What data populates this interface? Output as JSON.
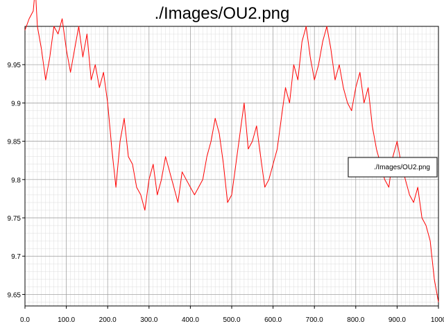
{
  "chart_data": {
    "type": "line",
    "title": "./Images/OU2.png",
    "xlabel": "",
    "ylabel": "",
    "xlim": [
      0,
      1000
    ],
    "ylim": [
      9.635,
      10.0
    ],
    "x_ticks": [
      0,
      100,
      200,
      300,
      400,
      500,
      600,
      700,
      800,
      900,
      1000
    ],
    "x_tick_labels": [
      "0.0",
      "100.0",
      "200.0",
      "300.0",
      "400.0",
      "500.0",
      "600.0",
      "700.0",
      "800.0",
      "900.0",
      "1000"
    ],
    "y_ticks": [
      9.65,
      9.7,
      9.75,
      9.8,
      9.85,
      9.9,
      9.95
    ],
    "y_tick_labels": [
      "9.65",
      "9.7",
      "9.75",
      "9.8",
      "9.85",
      "9.9",
      "9.95"
    ],
    "grid": true,
    "legend": {
      "position": "right",
      "entries": [
        "./Images/OU2.png"
      ]
    },
    "series": [
      {
        "name": "./Images/OU2.png",
        "color": "#ff0000",
        "x": [
          0,
          10,
          20,
          25,
          30,
          40,
          50,
          60,
          70,
          80,
          90,
          100,
          110,
          120,
          130,
          140,
          150,
          160,
          170,
          180,
          190,
          200,
          210,
          220,
          230,
          240,
          250,
          260,
          270,
          280,
          290,
          300,
          310,
          320,
          330,
          340,
          350,
          360,
          370,
          380,
          390,
          400,
          410,
          420,
          430,
          440,
          450,
          460,
          470,
          480,
          490,
          500,
          510,
          520,
          530,
          540,
          550,
          560,
          570,
          580,
          590,
          600,
          610,
          620,
          630,
          640,
          650,
          660,
          670,
          680,
          690,
          700,
          710,
          720,
          730,
          740,
          750,
          760,
          770,
          780,
          790,
          800,
          810,
          820,
          830,
          840,
          850,
          860,
          870,
          880,
          890,
          900,
          910,
          920,
          930,
          940,
          950,
          960,
          970,
          980,
          990,
          1000
        ],
        "y": [
          9.995,
          10.01,
          10.02,
          10.05,
          10.0,
          9.97,
          9.93,
          9.96,
          10.0,
          9.99,
          10.01,
          9.97,
          9.94,
          9.97,
          10.0,
          9.96,
          9.99,
          9.93,
          9.95,
          9.92,
          9.94,
          9.9,
          9.84,
          9.79,
          9.85,
          9.88,
          9.83,
          9.82,
          9.79,
          9.78,
          9.76,
          9.8,
          9.82,
          9.78,
          9.8,
          9.83,
          9.81,
          9.79,
          9.77,
          9.81,
          9.8,
          9.79,
          9.78,
          9.79,
          9.8,
          9.83,
          9.85,
          9.88,
          9.86,
          9.82,
          9.77,
          9.78,
          9.82,
          9.86,
          9.9,
          9.84,
          9.85,
          9.87,
          9.83,
          9.79,
          9.8,
          9.82,
          9.84,
          9.88,
          9.92,
          9.9,
          9.95,
          9.93,
          9.98,
          10.0,
          9.96,
          9.93,
          9.95,
          9.98,
          10.0,
          9.97,
          9.93,
          9.95,
          9.92,
          9.9,
          9.89,
          9.92,
          9.94,
          9.9,
          9.92,
          9.87,
          9.84,
          9.82,
          9.8,
          9.79,
          9.83,
          9.85,
          9.82,
          9.8,
          9.78,
          9.77,
          9.79,
          9.75,
          9.74,
          9.72,
          9.67,
          9.64
        ]
      }
    ]
  }
}
